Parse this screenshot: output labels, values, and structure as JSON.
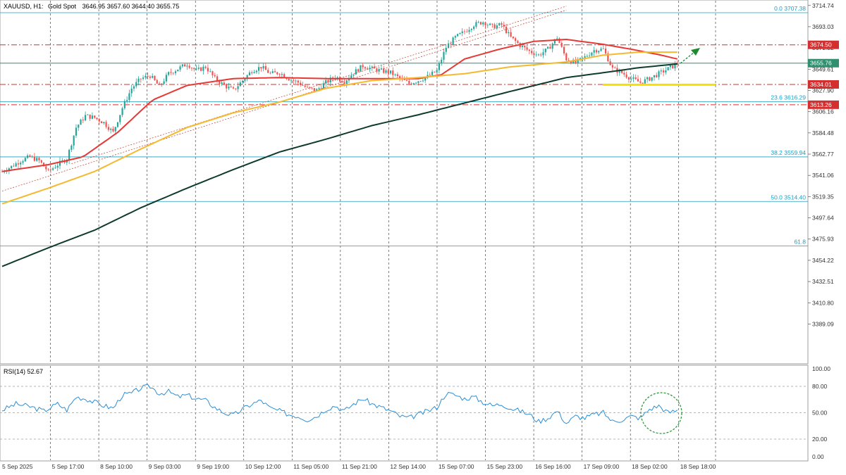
{
  "header": {
    "symbol": "XAUUSD, H1:",
    "name": "Gold Spot",
    "ohlc": "3646.95 3657.60 3644.40 3655.75"
  },
  "rsi_header": "RSI(14) 52.67",
  "colors": {
    "bull": "#26a69a",
    "bear": "#ef5350",
    "ma_red": "#e53935",
    "ma_orange": "#f5b82e",
    "ma_dark": "#0f3b2e",
    "fib": "#1a9fc0",
    "hline_red": "#d32f2f",
    "support_zone": "#f5e000",
    "rsi_line": "#2b8fd6",
    "circle": "#2e9b3a",
    "arrow": "#1e8a2e"
  },
  "chart_data": [
    {
      "type": "candlestick",
      "symbol": "XAUUSD",
      "timeframe": "H1",
      "ylim": [
        3370,
        3716
      ],
      "price_axis_ticks": [
        "3714.74",
        "3693.03",
        "3671.32",
        "3649.61",
        "3627.90",
        "3606.16",
        "3584.48",
        "3562.77",
        "3541.06",
        "3519.35",
        "3497.64",
        "3475.93",
        "3454.22",
        "3432.51",
        "3410.80",
        "3389.09"
      ],
      "time_axis_labels": [
        "5 Sep 2025",
        "5 Sep 17:00",
        "8 Sep 10:00",
        "9 Sep 03:00",
        "9 Sep 19:00",
        "10 Sep 12:00",
        "11 Sep 05:00",
        "11 Sep 21:00",
        "12 Sep 14:00",
        "15 Sep 07:00",
        "15 Sep 23:00",
        "16 Sep 16:00",
        "17 Sep 09:00",
        "18 Sep 02:00",
        "18 Sep 18:00"
      ],
      "close_path": [
        [
          0,
          3545
        ],
        [
          4,
          3550
        ],
        [
          8,
          3556
        ],
        [
          12,
          3560
        ],
        [
          16,
          3556
        ],
        [
          20,
          3545
        ],
        [
          24,
          3552
        ],
        [
          28,
          3558
        ],
        [
          32,
          3590
        ],
        [
          36,
          3602
        ],
        [
          40,
          3600
        ],
        [
          44,
          3595
        ],
        [
          48,
          3585
        ],
        [
          52,
          3610
        ],
        [
          56,
          3630
        ],
        [
          60,
          3640
        ],
        [
          64,
          3643
        ],
        [
          68,
          3632
        ],
        [
          72,
          3645
        ],
        [
          76,
          3650
        ],
        [
          80,
          3655
        ],
        [
          84,
          3648
        ],
        [
          88,
          3652
        ],
        [
          92,
          3640
        ],
        [
          96,
          3633
        ],
        [
          100,
          3628
        ],
        [
          104,
          3638
        ],
        [
          108,
          3648
        ],
        [
          112,
          3652
        ],
        [
          116,
          3645
        ],
        [
          120,
          3646
        ],
        [
          124,
          3640
        ],
        [
          128,
          3636
        ],
        [
          132,
          3630
        ],
        [
          136,
          3628
        ],
        [
          140,
          3636
        ],
        [
          144,
          3642
        ],
        [
          148,
          3637
        ],
        [
          152,
          3646
        ],
        [
          156,
          3653
        ],
        [
          160,
          3650
        ],
        [
          164,
          3648
        ],
        [
          168,
          3646
        ],
        [
          172,
          3640
        ],
        [
          176,
          3635
        ],
        [
          180,
          3638
        ],
        [
          184,
          3642
        ],
        [
          188,
          3648
        ],
        [
          192,
          3672
        ],
        [
          196,
          3682
        ],
        [
          200,
          3688
        ],
        [
          204,
          3695
        ],
        [
          208,
          3698
        ],
        [
          212,
          3693
        ],
        [
          216,
          3695
        ],
        [
          220,
          3682
        ],
        [
          224,
          3674
        ],
        [
          228,
          3668
        ],
        [
          232,
          3664
        ],
        [
          236,
          3670
        ],
        [
          240,
          3682
        ],
        [
          244,
          3660
        ],
        [
          248,
          3656
        ],
        [
          252,
          3662
        ],
        [
          256,
          3669
        ],
        [
          260,
          3670
        ],
        [
          264,
          3650
        ],
        [
          268,
          3646
        ],
        [
          272,
          3640
        ],
        [
          276,
          3636
        ],
        [
          280,
          3640
        ],
        [
          284,
          3645
        ],
        [
          288,
          3650
        ],
        [
          292,
          3655
        ]
      ],
      "moving_averages": [
        {
          "name": "MA red",
          "values": [
            [
              0,
              3545
            ],
            [
              20,
              3552
            ],
            [
              35,
              3560
            ],
            [
              50,
              3585
            ],
            [
              65,
              3618
            ],
            [
              80,
              3633
            ],
            [
              100,
              3640
            ],
            [
              120,
              3641
            ],
            [
              140,
              3640
            ],
            [
              160,
              3640
            ],
            [
              180,
              3640
            ],
            [
              190,
              3644
            ],
            [
              200,
              3660
            ],
            [
              215,
              3670
            ],
            [
              230,
              3678
            ],
            [
              244,
              3680
            ],
            [
              260,
              3675
            ],
            [
              272,
              3670
            ],
            [
              285,
              3664
            ],
            [
              292,
              3660
            ]
          ]
        },
        {
          "name": "MA orange",
          "values": [
            [
              0,
              3512
            ],
            [
              20,
              3528
            ],
            [
              40,
              3545
            ],
            [
              60,
              3568
            ],
            [
              80,
              3590
            ],
            [
              100,
              3605
            ],
            [
              120,
              3616
            ],
            [
              140,
              3630
            ],
            [
              160,
              3638
            ],
            [
              180,
              3641
            ],
            [
              200,
              3645
            ],
            [
              220,
              3652
            ],
            [
              244,
              3657
            ],
            [
              260,
              3664
            ],
            [
              275,
              3667
            ],
            [
              292,
              3667
            ]
          ]
        },
        {
          "name": "MA dark green",
          "values": [
            [
              0,
              3448
            ],
            [
              20,
              3467
            ],
            [
              40,
              3485
            ],
            [
              60,
              3508
            ],
            [
              80,
              3528
            ],
            [
              100,
              3547
            ],
            [
              120,
              3565
            ],
            [
              140,
              3578
            ],
            [
              160,
              3592
            ],
            [
              180,
              3603
            ],
            [
              200,
              3615
            ],
            [
              220,
              3627
            ],
            [
              244,
              3641
            ],
            [
              260,
              3646
            ],
            [
              275,
              3651
            ],
            [
              292,
              3655
            ]
          ]
        }
      ],
      "fibonacci_levels": [
        {
          "label": "0.0 3707.38",
          "value": 3707.38
        },
        {
          "label": "23.6 3616.29",
          "value": 3616.29
        },
        {
          "label": "38.2 3559.94",
          "value": 3559.94
        },
        {
          "label": "50.0 3514.40",
          "value": 3514.4
        },
        {
          "label": "61.8",
          "value": 3468.9
        }
      ],
      "horizontal_levels": [
        {
          "label": "3674.50",
          "value": 3674.5,
          "style": "dash-dot",
          "color": "#d32f2f"
        },
        {
          "label": "3634.01",
          "value": 3634.01,
          "style": "dash-dot",
          "color": "#d32f2f"
        },
        {
          "label": "3613.26",
          "value": 3613.26,
          "style": "dash-dot",
          "color": "#d32f2f"
        },
        {
          "label": "3655.76",
          "value": 3655.76,
          "style": "solid",
          "color": "#2f8f6f"
        }
      ],
      "support_zone": {
        "from": 3633.2,
        "to": 3634.8
      },
      "trend_channel": {
        "start": [
          0,
          3525
        ],
        "end": [
          244,
          3710
        ]
      }
    },
    {
      "type": "line",
      "name": "RSI(14)",
      "value": 52.67,
      "ylim": [
        0,
        100
      ],
      "axis_ticks": [
        "100.00",
        "80.00",
        "50.00",
        "20.00",
        "0.00"
      ],
      "levels": [
        80,
        50,
        20
      ],
      "values": [
        [
          0,
          53
        ],
        [
          6,
          60
        ],
        [
          12,
          57
        ],
        [
          18,
          52
        ],
        [
          24,
          60
        ],
        [
          28,
          53
        ],
        [
          32,
          68
        ],
        [
          36,
          66
        ],
        [
          40,
          62
        ],
        [
          44,
          58
        ],
        [
          48,
          55
        ],
        [
          52,
          70
        ],
        [
          56,
          72
        ],
        [
          60,
          78
        ],
        [
          64,
          80
        ],
        [
          68,
          72
        ],
        [
          72,
          74
        ],
        [
          76,
          68
        ],
        [
          80,
          70
        ],
        [
          84,
          66
        ],
        [
          88,
          64
        ],
        [
          92,
          56
        ],
        [
          96,
          50
        ],
        [
          100,
          47
        ],
        [
          104,
          54
        ],
        [
          108,
          60
        ],
        [
          112,
          64
        ],
        [
          116,
          55
        ],
        [
          120,
          52
        ],
        [
          124,
          48
        ],
        [
          128,
          46
        ],
        [
          132,
          42
        ],
        [
          136,
          46
        ],
        [
          140,
          54
        ],
        [
          144,
          58
        ],
        [
          148,
          52
        ],
        [
          152,
          60
        ],
        [
          156,
          66
        ],
        [
          160,
          60
        ],
        [
          164,
          56
        ],
        [
          168,
          52
        ],
        [
          172,
          46
        ],
        [
          176,
          44
        ],
        [
          180,
          48
        ],
        [
          184,
          52
        ],
        [
          188,
          56
        ],
        [
          192,
          72
        ],
        [
          196,
          70
        ],
        [
          200,
          66
        ],
        [
          204,
          68
        ],
        [
          208,
          62
        ],
        [
          212,
          58
        ],
        [
          216,
          60
        ],
        [
          220,
          55
        ],
        [
          224,
          52
        ],
        [
          228,
          48
        ],
        [
          232,
          40
        ],
        [
          236,
          44
        ],
        [
          240,
          52
        ],
        [
          244,
          38
        ],
        [
          248,
          46
        ],
        [
          252,
          44
        ],
        [
          256,
          48
        ],
        [
          260,
          50
        ],
        [
          264,
          40
        ],
        [
          268,
          42
        ],
        [
          272,
          46
        ],
        [
          276,
          44
        ],
        [
          280,
          54
        ],
        [
          284,
          58
        ],
        [
          288,
          50
        ],
        [
          292,
          52.67
        ]
      ]
    }
  ]
}
